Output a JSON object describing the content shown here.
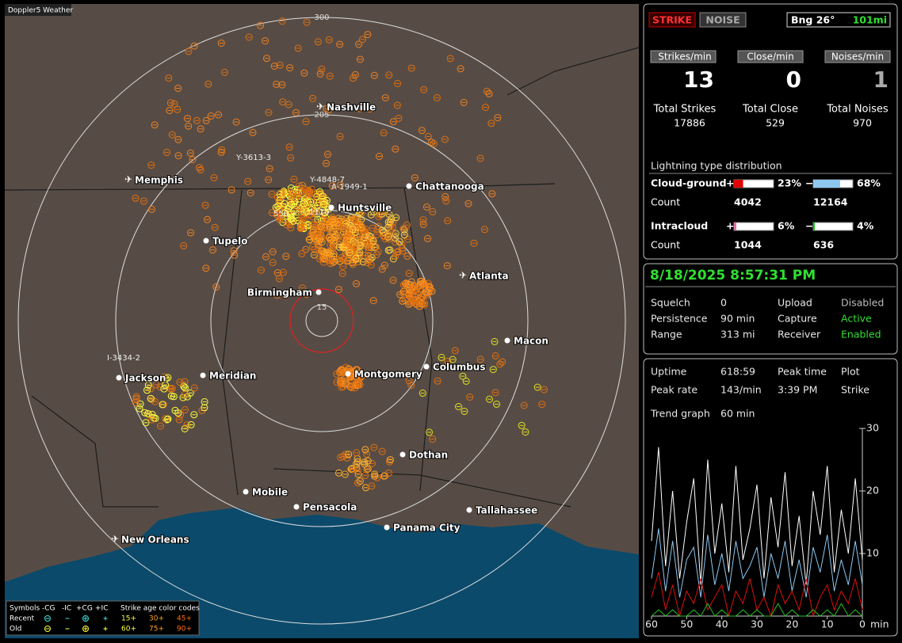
{
  "app_title": "Doppler5 Weather",
  "map": {
    "range_labels": [
      "300",
      "205",
      "15"
    ],
    "cities": [
      {
        "label": "Nashville",
        "airport": true
      },
      {
        "label": "Memphis",
        "airport": true
      },
      {
        "label": "Chattanooga",
        "airport": false
      },
      {
        "label": "Huntsville",
        "airport": false
      },
      {
        "label": "Tupelo",
        "airport": false
      },
      {
        "label": "Atlanta",
        "airport": true
      },
      {
        "label": "Birmingham",
        "airport": false
      },
      {
        "label": "Macon",
        "airport": false
      },
      {
        "label": "Jackson",
        "airport": false
      },
      {
        "label": "Meridian",
        "airport": false
      },
      {
        "label": "Montgomery",
        "airport": false
      },
      {
        "label": "Columbus",
        "airport": false
      },
      {
        "label": "Dothan",
        "airport": false
      },
      {
        "label": "Mobile",
        "airport": false
      },
      {
        "label": "Pensacola",
        "airport": false
      },
      {
        "label": "Tallahassee",
        "airport": false
      },
      {
        "label": "Panama City",
        "airport": false
      },
      {
        "label": "New Orleans",
        "airport": true
      }
    ],
    "strike_labels": [
      "Y-3613-3",
      "Y-4848-7",
      "A-1949-1",
      "I-3434-2",
      "550",
      "1110"
    ],
    "legend": {
      "header": [
        "Symbols",
        "-CG",
        "-IC",
        "+CG",
        "+IC",
        "Strike age color codes"
      ],
      "rows": [
        {
          "label": "Recent",
          "ages": [
            "15+",
            "30+",
            "45+"
          ]
        },
        {
          "label": "Old",
          "ages": [
            "60+",
            "75+",
            "90+"
          ]
        }
      ]
    }
  },
  "status": {
    "strike": "STRIKE",
    "noise": "NOISE",
    "bearing": "Bng 26°",
    "distance": "101mi"
  },
  "rates": [
    {
      "label": "Strikes/min",
      "value": "13"
    },
    {
      "label": "Close/min",
      "value": "0"
    },
    {
      "label": "Noises/min",
      "value": "1"
    }
  ],
  "totals": [
    {
      "label": "Total Strikes",
      "value": "17886"
    },
    {
      "label": "Total Close",
      "value": "529"
    },
    {
      "label": "Total Noises",
      "value": "970"
    }
  ],
  "distribution": {
    "title": "Lightning type distribution",
    "count_label": "Count",
    "rows": [
      {
        "label": "Cloud-ground",
        "plus": {
          "sign": "+",
          "value": 23,
          "label": "23%",
          "color": "#e00000",
          "count": "4042"
        },
        "minus": {
          "sign": "−",
          "value": 68,
          "label": "68%",
          "color": "#8ec8f0",
          "count": "12164"
        }
      },
      {
        "label": "Intracloud",
        "plus": {
          "sign": "+",
          "value": 6,
          "label": "6%",
          "color": "#e070a0",
          "count": "1044"
        },
        "minus": {
          "sign": "−",
          "value": 4,
          "label": "4%",
          "color": "#20c020",
          "count": "636"
        }
      }
    ]
  },
  "datetime": "8/18/2025 8:57:31 PM",
  "settings": [
    [
      {
        "text": "Squelch"
      },
      {
        "text": "0"
      },
      {
        "text": "Upload"
      },
      {
        "text": "Disabled"
      }
    ],
    [
      {
        "text": "Persistence"
      },
      {
        "text": "90 min"
      },
      {
        "text": "Capture"
      },
      {
        "text": "Active",
        "color": "#30e030"
      }
    ],
    [
      {
        "text": "Range"
      },
      {
        "text": "313 mi"
      },
      {
        "text": "Receiver"
      },
      {
        "text": "Enabled",
        "color": "#30e030"
      }
    ]
  ],
  "stats": [
    [
      "Uptime",
      "618:59",
      "Peak time",
      "Plot"
    ],
    [
      "Peak rate",
      "143/min",
      "3:39 PM",
      "Strike"
    ],
    [
      "Trend graph",
      "60 min"
    ]
  ],
  "chart_data": {
    "type": "line",
    "x": [
      60,
      58,
      56,
      54,
      52,
      50,
      48,
      46,
      44,
      42,
      40,
      38,
      36,
      34,
      32,
      30,
      28,
      26,
      24,
      22,
      20,
      18,
      16,
      14,
      12,
      10,
      8,
      6,
      4,
      2,
      0
    ],
    "xlim": [
      60,
      0
    ],
    "xticks": [
      60,
      50,
      40,
      30,
      20,
      10,
      0
    ],
    "x_unit": "min",
    "ylim": [
      0,
      30
    ],
    "yticks": [
      10,
      20,
      30
    ],
    "series": [
      {
        "color": "#ffffff",
        "values": [
          12,
          27,
          8,
          20,
          6,
          15,
          22,
          5,
          25,
          10,
          18,
          7,
          24,
          9,
          14,
          21,
          6,
          19,
          11,
          23,
          8,
          16,
          5,
          20,
          13,
          24,
          7,
          17,
          10,
          22,
          9
        ]
      },
      {
        "color": "#8ec8f0",
        "values": [
          6,
          14,
          4,
          12,
          3,
          9,
          11,
          3,
          13,
          5,
          10,
          4,
          12,
          6,
          8,
          11,
          3,
          10,
          6,
          12,
          4,
          9,
          3,
          11,
          7,
          13,
          4,
          9,
          5,
          12,
          5
        ]
      },
      {
        "color": "#e01010",
        "values": [
          3,
          7,
          1,
          5,
          0,
          4,
          2,
          6,
          1,
          3,
          5,
          0,
          4,
          2,
          6,
          1,
          3,
          0,
          5,
          2,
          4,
          1,
          6,
          0,
          3,
          5,
          1,
          4,
          2,
          6,
          1
        ]
      },
      {
        "color": "#20c020",
        "values": [
          0,
          1,
          0,
          1,
          0,
          0,
          1,
          0,
          2,
          0,
          1,
          0,
          0,
          1,
          0,
          1,
          0,
          0,
          2,
          0,
          1,
          0,
          0,
          1,
          0,
          1,
          0,
          2,
          0,
          1,
          0
        ]
      }
    ]
  }
}
